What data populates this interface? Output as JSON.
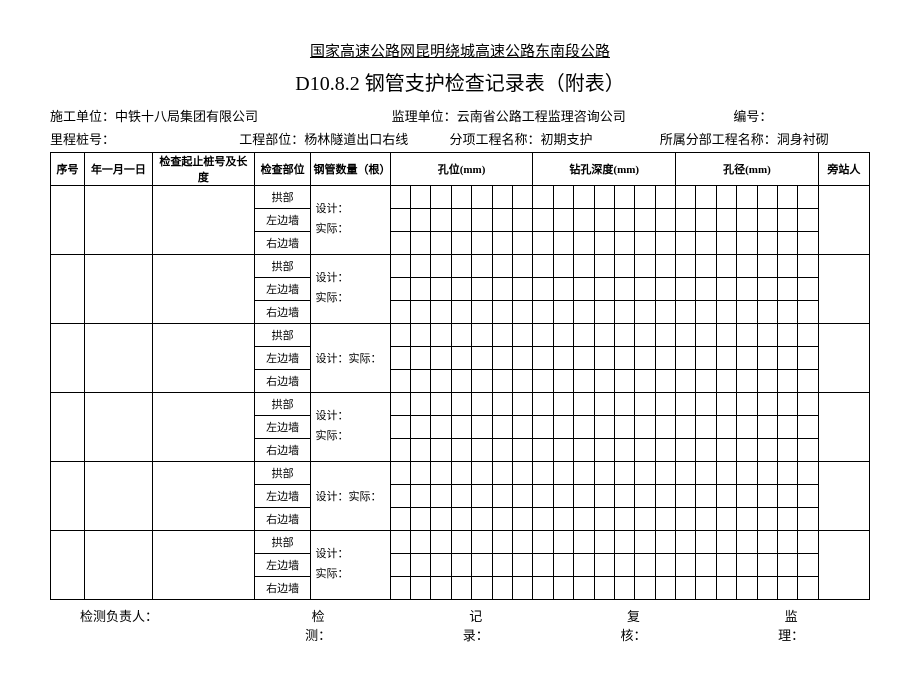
{
  "header": {
    "line1": "国家高速公路网昆明绕城高速公路东南段公路",
    "line2": "D10.8.2 钢管支护检查记录表（附表）"
  },
  "meta1": {
    "left_label": "施工单位：",
    "left_value": "中铁十八局集团有限公司",
    "mid_label": "监理单位：",
    "mid_value": "云南省公路工程监理咨询公司",
    "right_label": "编号：",
    "right_value": ""
  },
  "meta2": {
    "c1_label": "里程桩号：",
    "c1_value": "",
    "c2_label": "工程部位：",
    "c2_value": "杨林隧道出口右线",
    "c3_label": "分项工程名称：",
    "c3_value": "初期支护",
    "c4_label": "所属分部工程名称：",
    "c4_value": "洞身衬砌"
  },
  "thead": {
    "seq": "序号",
    "date": "年一月一日",
    "stake": "检查起止桩号及长度",
    "part": "检查部位",
    "count": "钢管数量（根）",
    "hole_pos": "孔位(mm)",
    "drill_depth": "钻孔深度(mm)",
    "hole_diam": "孔径(mm)",
    "observer": "旁站人"
  },
  "parts": [
    "拱部",
    "左边墙",
    "右边墙"
  ],
  "count_labels_2line": [
    "设计：",
    "实际："
  ],
  "count_labels_1line": "设计：实际：",
  "groups": [
    {
      "count_mode": "2line"
    },
    {
      "count_mode": "2line"
    },
    {
      "count_mode": "1line"
    },
    {
      "count_mode": "2line"
    },
    {
      "count_mode": "1line"
    },
    {
      "count_mode": "2line"
    }
  ],
  "footer": {
    "resp": "检测负责人：",
    "jian": "检",
    "ji": "记",
    "fu": "复",
    "jian2": "监",
    "ce": "测：",
    "lu": "录：",
    "he": "核：",
    "li": "理："
  }
}
